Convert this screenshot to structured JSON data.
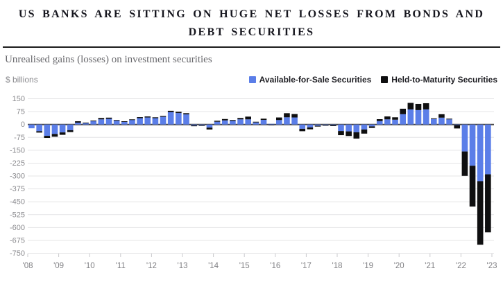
{
  "header": {
    "title_lines": [
      "US BANKS ARE SITTING ON HUGE NET LOSSES FROM BONDS AND",
      "DEBT SECURITIES"
    ]
  },
  "chart_data": {
    "type": "bar",
    "stacked": true,
    "title": "US BANKS ARE SITTING ON HUGE NET LOSSES FROM BONDS AND DEBT SECURITIES",
    "subtitle": "Unrealised gains (losses) on investment securities",
    "ylabel": "$ billions",
    "xlabel": "",
    "grid": true,
    "legend_position": "top-right",
    "ylim": [
      -750,
      150
    ],
    "y_ticks": [
      150,
      75,
      0,
      -75,
      -150,
      -225,
      -300,
      -375,
      -450,
      -525,
      -600,
      -675,
      -750
    ],
    "x_year_labels": [
      "'08",
      "'09",
      "'10",
      "'11",
      "'12",
      "'13",
      "'14",
      "'15",
      "'16",
      "'17",
      "'18",
      "'19",
      "'20",
      "'21",
      "'22",
      "'23"
    ],
    "categories": [
      "2008 Q1",
      "2008 Q2",
      "2008 Q3",
      "2008 Q4",
      "2009 Q1",
      "2009 Q2",
      "2009 Q3",
      "2009 Q4",
      "2010 Q1",
      "2010 Q2",
      "2010 Q3",
      "2010 Q4",
      "2011 Q1",
      "2011 Q2",
      "2011 Q3",
      "2011 Q4",
      "2012 Q1",
      "2012 Q2",
      "2012 Q3",
      "2012 Q4",
      "2013 Q1",
      "2013 Q2",
      "2013 Q3",
      "2013 Q4",
      "2014 Q1",
      "2014 Q2",
      "2014 Q3",
      "2014 Q4",
      "2015 Q1",
      "2015 Q2",
      "2015 Q3",
      "2015 Q4",
      "2016 Q1",
      "2016 Q2",
      "2016 Q3",
      "2016 Q4",
      "2017 Q1",
      "2017 Q2",
      "2017 Q3",
      "2017 Q4",
      "2018 Q1",
      "2018 Q2",
      "2018 Q3",
      "2018 Q4",
      "2019 Q1",
      "2019 Q2",
      "2019 Q3",
      "2019 Q4",
      "2020 Q1",
      "2020 Q2",
      "2020 Q3",
      "2020 Q4",
      "2021 Q1",
      "2021 Q2",
      "2021 Q3",
      "2021 Q4",
      "2022 Q1",
      "2022 Q2",
      "2022 Q3",
      "2022 Q4"
    ],
    "series": [
      {
        "name": "Available-for-Sale Securities",
        "color": "#5b7ee8",
        "values": [
          -22,
          -39,
          -66,
          -55,
          -46,
          -33,
          11,
          9,
          20,
          30,
          33,
          24,
          17,
          27,
          37,
          41,
          37,
          45,
          72,
          67,
          59,
          -5,
          -4,
          -18,
          16,
          24,
          21,
          30,
          30,
          12,
          27,
          4,
          26,
          42,
          41,
          -25,
          -17,
          -7,
          -3,
          -3,
          -38,
          -40,
          -45,
          -29,
          -11,
          20,
          30,
          28,
          60,
          88,
          84,
          88,
          32,
          40,
          30,
          -3,
          -157,
          -240,
          -330,
          -290
        ]
      },
      {
        "name": "Held-to-Maturity Securities",
        "color": "#0f0f10",
        "values": [
          0,
          -8,
          -12,
          -16,
          -14,
          -11,
          8,
          2,
          3,
          8,
          7,
          2,
          2,
          3,
          6,
          6,
          5,
          5,
          8,
          7,
          7,
          -5,
          -4,
          -11,
          6,
          8,
          5,
          8,
          16,
          4,
          7,
          -4,
          15,
          24,
          20,
          -14,
          -11,
          -5,
          -3,
          -6,
          -24,
          -27,
          -37,
          -24,
          -9,
          11,
          17,
          14,
          32,
          38,
          36,
          36,
          4,
          20,
          4,
          -20,
          -142,
          -238,
          -370,
          -338
        ]
      }
    ]
  }
}
